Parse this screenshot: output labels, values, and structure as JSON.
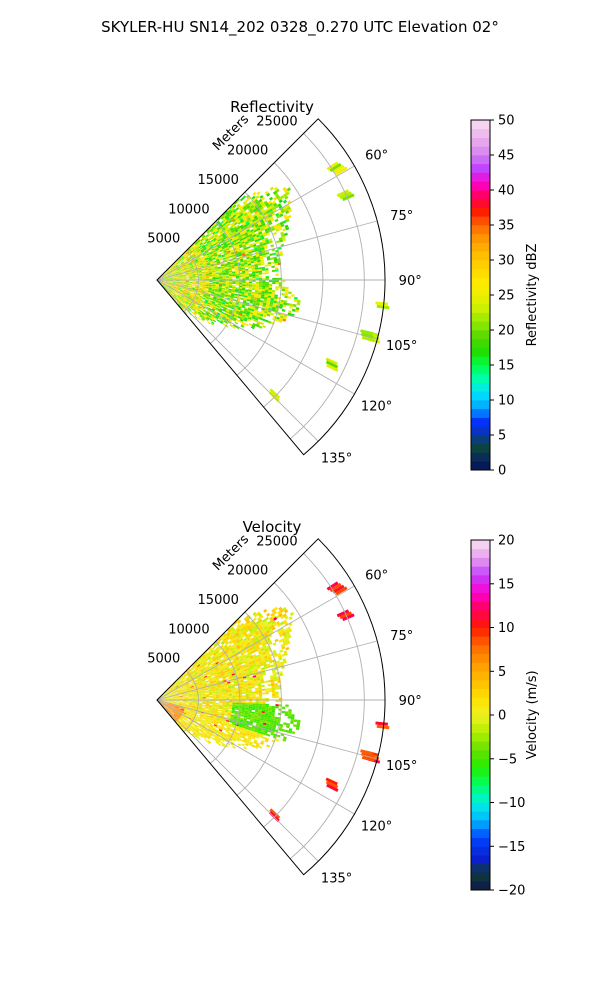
{
  "figure": {
    "suptitle": "SKYLER-HU  SN14_202  0328_0.270 UTC Elevation 02°"
  },
  "colors": {
    "refl_stops": [
      [
        0,
        "#04105a"
      ],
      [
        2,
        "#0a2e55"
      ],
      [
        3.5,
        "#0d4a3a"
      ],
      [
        5,
        "#0b33aa"
      ],
      [
        7,
        "#0033ff"
      ],
      [
        9,
        "#00a8ff"
      ],
      [
        11,
        "#00e0ff"
      ],
      [
        13,
        "#00ffb0"
      ],
      [
        15,
        "#00ff44"
      ],
      [
        17,
        "#22dd00"
      ],
      [
        19,
        "#55d800"
      ],
      [
        21,
        "#8ee800"
      ],
      [
        23,
        "#c8f000"
      ],
      [
        25,
        "#eef000"
      ],
      [
        27,
        "#ffe800"
      ],
      [
        29,
        "#ffd200"
      ],
      [
        31,
        "#ffbb00"
      ],
      [
        33,
        "#ff9900"
      ],
      [
        35,
        "#ff6600"
      ],
      [
        37,
        "#ff1a00"
      ],
      [
        39,
        "#ff0055"
      ],
      [
        41,
        "#ff00cc"
      ],
      [
        43,
        "#c040ff"
      ],
      [
        45,
        "#d080f0"
      ],
      [
        47,
        "#e8a8ec"
      ],
      [
        50,
        "#f8e0f4"
      ]
    ]
  },
  "chart_data": [
    {
      "type": "heatmap",
      "projection": "polar-sector",
      "title": "Reflectivity",
      "rlabel": "Meters",
      "r_ticks": [
        5000,
        10000,
        15000,
        20000,
        25000
      ],
      "r_tick_labels": [
        "5000",
        "10000",
        "15000",
        "20000",
        "25000"
      ],
      "rlim": [
        0,
        27500
      ],
      "theta_ticks": [
        60,
        75,
        90,
        105,
        120,
        135
      ],
      "theta_tick_labels": [
        "60°",
        "75°",
        "90°",
        "105°",
        "120°",
        "135°"
      ],
      "thetalim": [
        45,
        140
      ],
      "grid": true,
      "colorbar": {
        "label": "Reflectivity dBZ",
        "range": [
          0,
          50
        ],
        "ticks": [
          0,
          5,
          10,
          15,
          20,
          25,
          30,
          35,
          40,
          45,
          50
        ],
        "tick_labels": [
          "0",
          "5",
          "10",
          "15",
          "20",
          "25",
          "30",
          "35",
          "40",
          "45",
          "50"
        ]
      },
      "echo_extent": [
        {
          "az": 47,
          "r": 14500
        },
        {
          "az": 52,
          "r": 18000
        },
        {
          "az": 56,
          "r": 19500
        },
        {
          "az": 60,
          "r": 18500
        },
        {
          "az": 64,
          "r": 17800
        },
        {
          "az": 68,
          "r": 17000
        },
        {
          "az": 72,
          "r": 16200
        },
        {
          "az": 76,
          "r": 15500
        },
        {
          "az": 80,
          "r": 15000
        },
        {
          "az": 84,
          "r": 14800
        },
        {
          "az": 88,
          "r": 14500
        },
        {
          "az": 92,
          "r": 15500
        },
        {
          "az": 96,
          "r": 16500
        },
        {
          "az": 100,
          "r": 17500
        },
        {
          "az": 104,
          "r": 17000
        },
        {
          "az": 108,
          "r": 15800
        },
        {
          "az": 112,
          "r": 14500
        },
        {
          "az": 116,
          "r": 13000
        },
        {
          "az": 120,
          "r": 11500
        },
        {
          "az": 124,
          "r": 10000
        },
        {
          "az": 128,
          "r": 8500
        },
        {
          "az": 132,
          "r": 7000
        },
        {
          "az": 136,
          "r": 5500
        }
      ],
      "dominant_value": 22
    },
    {
      "type": "heatmap",
      "projection": "polar-sector",
      "title": "Velocity",
      "rlabel": "Meters",
      "r_ticks": [
        5000,
        10000,
        15000,
        20000,
        25000
      ],
      "r_tick_labels": [
        "5000",
        "10000",
        "15000",
        "20000",
        "25000"
      ],
      "rlim": [
        0,
        27500
      ],
      "theta_ticks": [
        60,
        75,
        90,
        105,
        120,
        135
      ],
      "theta_tick_labels": [
        "60°",
        "75°",
        "90°",
        "105°",
        "120°",
        "135°"
      ],
      "thetalim": [
        45,
        140
      ],
      "grid": true,
      "colorbar": {
        "label": "Velocity (m/s)",
        "range": [
          -20,
          20
        ],
        "ticks": [
          -20,
          -15,
          -10,
          -5,
          0,
          5,
          10,
          15,
          20
        ],
        "tick_labels": [
          "−20",
          "−15",
          "−10",
          "−5",
          "0",
          "5",
          "10",
          "15",
          "20"
        ]
      },
      "echo_extent": [
        {
          "az": 47,
          "r": 14500
        },
        {
          "az": 52,
          "r": 18000
        },
        {
          "az": 56,
          "r": 19500
        },
        {
          "az": 60,
          "r": 18500
        },
        {
          "az": 64,
          "r": 17800
        },
        {
          "az": 68,
          "r": 17000
        },
        {
          "az": 72,
          "r": 16200
        },
        {
          "az": 76,
          "r": 15500
        },
        {
          "az": 80,
          "r": 15000
        },
        {
          "az": 84,
          "r": 14800
        },
        {
          "az": 88,
          "r": 14500
        },
        {
          "az": 92,
          "r": 15500
        },
        {
          "az": 96,
          "r": 16500
        },
        {
          "az": 100,
          "r": 17500
        },
        {
          "az": 104,
          "r": 17000
        },
        {
          "az": 108,
          "r": 15800
        },
        {
          "az": 112,
          "r": 14500
        },
        {
          "az": 116,
          "r": 13000
        },
        {
          "az": 120,
          "r": 11500
        },
        {
          "az": 124,
          "r": 10000
        },
        {
          "az": 128,
          "r": 8500
        },
        {
          "az": 132,
          "r": 7000
        },
        {
          "az": 136,
          "r": 5500
        }
      ],
      "dominant_value": 1
    }
  ]
}
